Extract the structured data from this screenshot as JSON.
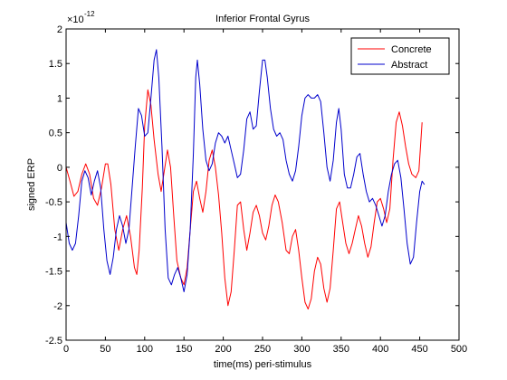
{
  "chart_data": {
    "type": "line",
    "title": "Inferior Frontal Gyrus",
    "xlabel": "time(ms) peri-stimulus",
    "ylabel": "signed ERP",
    "y_multiplier": "×10",
    "y_exponent": "-12",
    "xlim": [
      0,
      500
    ],
    "ylim": [
      -2.5,
      2
    ],
    "xticks": [
      0,
      50,
      100,
      150,
      200,
      250,
      300,
      350,
      400,
      450,
      500
    ],
    "yticks": [
      -2.5,
      -2,
      -1.5,
      -1,
      -0.5,
      0,
      0.5,
      1,
      1.5,
      2
    ],
    "grid": false,
    "legend_position": "top-right",
    "series": [
      {
        "name": "Concrete",
        "color": "#ff0000",
        "points": [
          [
            0,
            0
          ],
          [
            5,
            -0.2
          ],
          [
            10,
            -0.42
          ],
          [
            15,
            -0.35
          ],
          [
            20,
            -0.1
          ],
          [
            25,
            0.05
          ],
          [
            30,
            -0.1
          ],
          [
            35,
            -0.45
          ],
          [
            40,
            -0.55
          ],
          [
            45,
            -0.3
          ],
          [
            50,
            0.05
          ],
          [
            53,
            0.05
          ],
          [
            57,
            -0.25
          ],
          [
            62,
            -0.9
          ],
          [
            67,
            -1.2
          ],
          [
            72,
            -0.9
          ],
          [
            77,
            -0.7
          ],
          [
            82,
            -1.0
          ],
          [
            87,
            -1.45
          ],
          [
            90,
            -1.55
          ],
          [
            93,
            -1.2
          ],
          [
            97,
            -0.3
          ],
          [
            100,
            0.6
          ],
          [
            104,
            1.12
          ],
          [
            108,
            0.9
          ],
          [
            112,
            0.4
          ],
          [
            117,
            -0.1
          ],
          [
            121,
            -0.35
          ],
          [
            125,
            -0.05
          ],
          [
            129,
            0.25
          ],
          [
            133,
            0.0
          ],
          [
            137,
            -0.7
          ],
          [
            141,
            -1.35
          ],
          [
            146,
            -1.6
          ],
          [
            150,
            -1.7
          ],
          [
            154,
            -1.45
          ],
          [
            158,
            -0.9
          ],
          [
            162,
            -0.35
          ],
          [
            166,
            -0.2
          ],
          [
            170,
            -0.45
          ],
          [
            174,
            -0.65
          ],
          [
            178,
            -0.35
          ],
          [
            182,
            0.1
          ],
          [
            186,
            0.25
          ],
          [
            190,
            0.0
          ],
          [
            194,
            -0.4
          ],
          [
            198,
            -0.95
          ],
          [
            202,
            -1.6
          ],
          [
            206,
            -2.0
          ],
          [
            210,
            -1.8
          ],
          [
            214,
            -1.2
          ],
          [
            218,
            -0.55
          ],
          [
            222,
            -0.5
          ],
          [
            226,
            -0.9
          ],
          [
            230,
            -1.2
          ],
          [
            234,
            -0.95
          ],
          [
            238,
            -0.65
          ],
          [
            242,
            -0.55
          ],
          [
            246,
            -0.7
          ],
          [
            250,
            -0.95
          ],
          [
            254,
            -1.05
          ],
          [
            258,
            -0.85
          ],
          [
            262,
            -0.55
          ],
          [
            266,
            -0.4
          ],
          [
            270,
            -0.5
          ],
          [
            275,
            -0.8
          ],
          [
            280,
            -1.2
          ],
          [
            284,
            -1.25
          ],
          [
            288,
            -1.0
          ],
          [
            292,
            -0.9
          ],
          [
            296,
            -1.2
          ],
          [
            300,
            -1.6
          ],
          [
            304,
            -1.95
          ],
          [
            308,
            -2.05
          ],
          [
            312,
            -1.9
          ],
          [
            316,
            -1.5
          ],
          [
            320,
            -1.3
          ],
          [
            324,
            -1.4
          ],
          [
            328,
            -1.75
          ],
          [
            332,
            -1.95
          ],
          [
            336,
            -1.75
          ],
          [
            340,
            -1.2
          ],
          [
            344,
            -0.6
          ],
          [
            348,
            -0.5
          ],
          [
            352,
            -0.8
          ],
          [
            356,
            -1.1
          ],
          [
            360,
            -1.25
          ],
          [
            364,
            -1.1
          ],
          [
            368,
            -0.9
          ],
          [
            372,
            -0.7
          ],
          [
            376,
            -0.85
          ],
          [
            380,
            -1.1
          ],
          [
            384,
            -1.3
          ],
          [
            388,
            -1.15
          ],
          [
            392,
            -0.8
          ],
          [
            396,
            -0.5
          ],
          [
            400,
            -0.45
          ],
          [
            404,
            -0.6
          ],
          [
            408,
            -0.8
          ],
          [
            412,
            -0.6
          ],
          [
            416,
            0.1
          ],
          [
            420,
            0.65
          ],
          [
            424,
            0.8
          ],
          [
            428,
            0.6
          ],
          [
            432,
            0.3
          ],
          [
            436,
            0.05
          ],
          [
            440,
            -0.1
          ],
          [
            445,
            -0.15
          ],
          [
            449,
            -0.05
          ],
          [
            453,
            0.65
          ]
        ]
      },
      {
        "name": "Abstract",
        "color": "#0000cc",
        "points": [
          [
            0,
            -0.8
          ],
          [
            4,
            -1.1
          ],
          [
            8,
            -1.2
          ],
          [
            12,
            -1.1
          ],
          [
            16,
            -0.7
          ],
          [
            20,
            -0.2
          ],
          [
            24,
            -0.05
          ],
          [
            28,
            -0.15
          ],
          [
            32,
            -0.4
          ],
          [
            36,
            -0.2
          ],
          [
            40,
            -0.05
          ],
          [
            44,
            -0.3
          ],
          [
            48,
            -0.9
          ],
          [
            52,
            -1.35
          ],
          [
            56,
            -1.55
          ],
          [
            60,
            -1.3
          ],
          [
            64,
            -0.9
          ],
          [
            68,
            -0.7
          ],
          [
            72,
            -0.85
          ],
          [
            76,
            -1.1
          ],
          [
            80,
            -0.9
          ],
          [
            84,
            -0.3
          ],
          [
            88,
            0.3
          ],
          [
            92,
            0.85
          ],
          [
            96,
            0.75
          ],
          [
            100,
            0.45
          ],
          [
            104,
            0.5
          ],
          [
            108,
            1.0
          ],
          [
            112,
            1.55
          ],
          [
            115,
            1.7
          ],
          [
            118,
            1.3
          ],
          [
            122,
            0.3
          ],
          [
            126,
            -0.9
          ],
          [
            130,
            -1.6
          ],
          [
            134,
            -1.7
          ],
          [
            138,
            -1.55
          ],
          [
            142,
            -1.45
          ],
          [
            146,
            -1.6
          ],
          [
            150,
            -1.8
          ],
          [
            154,
            -1.55
          ],
          [
            158,
            -0.9
          ],
          [
            162,
            0.2
          ],
          [
            165,
            1.3
          ],
          [
            167,
            1.55
          ],
          [
            170,
            1.2
          ],
          [
            174,
            0.55
          ],
          [
            178,
            0.1
          ],
          [
            182,
            -0.05
          ],
          [
            186,
            0.05
          ],
          [
            190,
            0.35
          ],
          [
            194,
            0.5
          ],
          [
            198,
            0.45
          ],
          [
            202,
            0.35
          ],
          [
            206,
            0.45
          ],
          [
            210,
            0.25
          ],
          [
            214,
            0.05
          ],
          [
            218,
            -0.15
          ],
          [
            222,
            -0.1
          ],
          [
            226,
            0.25
          ],
          [
            230,
            0.7
          ],
          [
            234,
            0.8
          ],
          [
            238,
            0.55
          ],
          [
            242,
            0.6
          ],
          [
            246,
            1.1
          ],
          [
            250,
            1.55
          ],
          [
            253,
            1.55
          ],
          [
            256,
            1.3
          ],
          [
            260,
            0.85
          ],
          [
            264,
            0.55
          ],
          [
            268,
            0.45
          ],
          [
            272,
            0.5
          ],
          [
            276,
            0.4
          ],
          [
            280,
            0.1
          ],
          [
            284,
            -0.1
          ],
          [
            288,
            -0.2
          ],
          [
            292,
            -0.05
          ],
          [
            296,
            0.3
          ],
          [
            300,
            0.75
          ],
          [
            304,
            1.0
          ],
          [
            308,
            1.05
          ],
          [
            312,
            1.0
          ],
          [
            316,
            1.0
          ],
          [
            320,
            1.05
          ],
          [
            324,
            0.95
          ],
          [
            328,
            0.5
          ],
          [
            332,
            0.0
          ],
          [
            336,
            -0.2
          ],
          [
            340,
            0.1
          ],
          [
            344,
            0.65
          ],
          [
            347,
            0.85
          ],
          [
            350,
            0.55
          ],
          [
            354,
            -0.1
          ],
          [
            358,
            -0.3
          ],
          [
            362,
            -0.3
          ],
          [
            366,
            -0.1
          ],
          [
            370,
            0.15
          ],
          [
            374,
            0.2
          ],
          [
            378,
            -0.1
          ],
          [
            382,
            -0.35
          ],
          [
            386,
            -0.5
          ],
          [
            390,
            -0.45
          ],
          [
            394,
            -0.55
          ],
          [
            398,
            -0.7
          ],
          [
            402,
            -0.85
          ],
          [
            406,
            -0.7
          ],
          [
            410,
            -0.35
          ],
          [
            414,
            -0.1
          ],
          [
            418,
            0.05
          ],
          [
            422,
            0.1
          ],
          [
            426,
            -0.15
          ],
          [
            430,
            -0.6
          ],
          [
            434,
            -1.1
          ],
          [
            438,
            -1.4
          ],
          [
            442,
            -1.3
          ],
          [
            446,
            -0.8
          ],
          [
            450,
            -0.35
          ],
          [
            453,
            -0.2
          ],
          [
            456,
            -0.25
          ]
        ]
      }
    ]
  }
}
